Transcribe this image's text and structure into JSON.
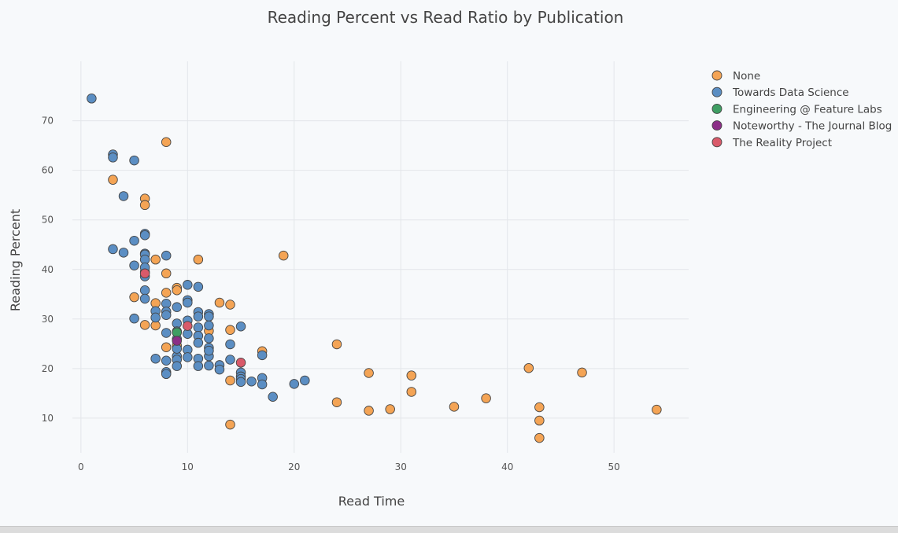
{
  "chart_data": {
    "type": "scatter",
    "title": "Reading Percent vs Read Ratio by Publication",
    "xlabel": "Read Time",
    "ylabel": "Reading Percent",
    "xlim": [
      -0.8,
      57
    ],
    "ylim": [
      3,
      82
    ],
    "xticks": [
      0,
      10,
      20,
      30,
      40,
      50
    ],
    "yticks": [
      10,
      20,
      30,
      40,
      50,
      60,
      70
    ],
    "grid": true,
    "legend": "top-right",
    "series": [
      {
        "name": "None",
        "color": "#f4a455",
        "x": [
          8,
          3,
          6,
          6,
          7,
          6,
          8,
          11,
          19,
          9,
          9,
          8,
          5,
          7,
          6,
          7,
          13,
          14,
          14,
          12,
          8,
          9,
          17,
          24,
          14,
          27,
          31,
          42,
          47,
          24,
          27,
          29,
          31,
          35,
          38,
          43,
          43,
          43,
          54,
          14
        ],
        "y": [
          65.7,
          58.1,
          54.3,
          53.0,
          42.0,
          39.5,
          39.2,
          42.0,
          42.8,
          36.3,
          35.8,
          35.3,
          34.4,
          33.2,
          28.8,
          28.7,
          33.3,
          32.9,
          27.8,
          27.6,
          24.3,
          24.6,
          23.5,
          24.9,
          17.6,
          19.1,
          18.6,
          20.1,
          19.2,
          13.2,
          11.5,
          11.8,
          15.3,
          12.3,
          14.0,
          12.2,
          9.5,
          6.0,
          11.7,
          8.7
        ]
      },
      {
        "name": "Towards Data Science",
        "color": "#5b8ec3",
        "x": [
          1,
          3,
          3,
          5,
          4,
          6,
          6,
          5,
          3,
          4,
          8,
          6,
          6,
          6,
          5,
          6,
          6,
          6,
          6,
          10,
          11,
          9,
          8,
          10,
          10,
          7,
          7,
          8,
          8,
          9,
          11,
          11,
          12,
          12,
          5,
          10,
          12,
          11,
          8,
          9,
          9,
          10,
          11,
          12,
          15,
          11,
          12,
          14,
          10,
          7,
          8,
          9,
          9,
          10,
          11,
          12,
          12,
          14,
          9,
          11,
          12,
          13,
          13,
          8,
          8,
          15,
          15,
          15,
          15,
          16,
          17,
          17,
          17,
          18,
          20,
          21,
          9
        ],
        "y": [
          74.5,
          63.2,
          62.6,
          62.0,
          54.8,
          47.2,
          46.9,
          45.8,
          44.1,
          43.4,
          42.8,
          43.2,
          43.0,
          42.0,
          40.8,
          40.4,
          38.6,
          35.8,
          34.1,
          36.9,
          36.5,
          32.4,
          33.1,
          33.8,
          33.3,
          31.6,
          30.3,
          31.5,
          30.8,
          29.1,
          31.4,
          30.5,
          31.0,
          30.5,
          30.1,
          29.7,
          28.7,
          28.3,
          27.2,
          27.5,
          26.0,
          27.0,
          26.6,
          26.1,
          28.5,
          25.2,
          24.2,
          24.9,
          23.8,
          22.0,
          21.6,
          22.5,
          21.8,
          22.3,
          22.0,
          22.5,
          23.6,
          21.8,
          24.0,
          20.5,
          20.6,
          20.7,
          19.8,
          19.3,
          18.9,
          19.2,
          18.4,
          17.9,
          17.3,
          17.4,
          18.1,
          16.8,
          22.7,
          14.3,
          16.9,
          17.6,
          20.5
        ]
      },
      {
        "name": "Engineering @ Feature Labs",
        "color": "#3f9e63",
        "x": [
          9
        ],
        "y": [
          27.3
        ]
      },
      {
        "name": "Noteworthy - The Journal Blog",
        "color": "#8b2f87",
        "x": [
          9
        ],
        "y": [
          25.6
        ]
      },
      {
        "name": "The Reality Project",
        "color": "#d95a6a",
        "x": [
          6,
          10,
          15
        ],
        "y": [
          39.2,
          28.6,
          21.2
        ]
      }
    ]
  }
}
